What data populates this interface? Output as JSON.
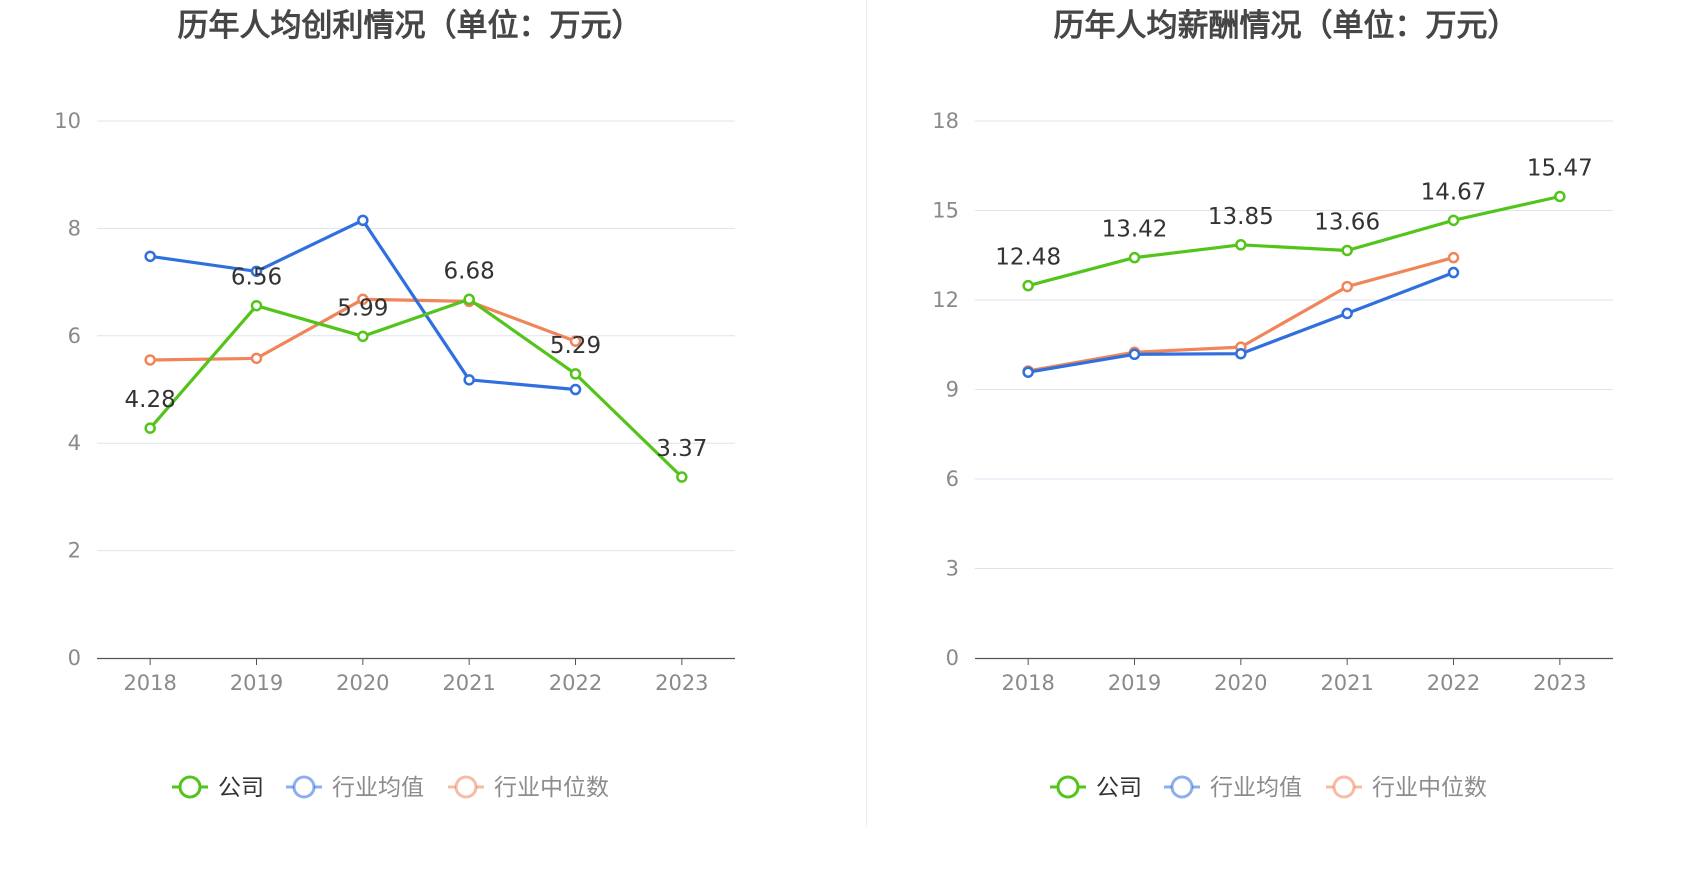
{
  "chart_data": [
    {
      "type": "line",
      "title": "历年人均创利情况（单位：万元）",
      "categories": [
        "2018",
        "2019",
        "2020",
        "2021",
        "2022",
        "2023"
      ],
      "ylim": [
        0,
        10
      ],
      "yticks": [
        0,
        2,
        4,
        6,
        8,
        10
      ],
      "grid": true,
      "legend_position": "bottom",
      "series": [
        {
          "name": "公司",
          "color": "#52c41a",
          "values": [
            4.28,
            6.56,
            5.99,
            6.68,
            5.29,
            3.37
          ],
          "labels": [
            "4.28",
            "6.56",
            "5.99",
            "6.68",
            "5.29",
            "3.37"
          ]
        },
        {
          "name": "行业均值",
          "color": "#2f6fde",
          "values": [
            7.48,
            7.2,
            8.15,
            5.18,
            5.0,
            null
          ]
        },
        {
          "name": "行业中位数",
          "color": "#f0855a",
          "values": [
            5.55,
            5.58,
            6.68,
            6.64,
            5.9,
            null
          ]
        }
      ]
    },
    {
      "type": "line",
      "title": "历年人均薪酬情况（单位：万元）",
      "categories": [
        "2018",
        "2019",
        "2020",
        "2021",
        "2022",
        "2023"
      ],
      "ylim": [
        0,
        18
      ],
      "yticks": [
        0,
        3,
        6,
        9,
        12,
        15,
        18
      ],
      "grid": true,
      "legend_position": "bottom",
      "series": [
        {
          "name": "公司",
          "color": "#52c41a",
          "values": [
            12.48,
            13.42,
            13.85,
            13.66,
            14.67,
            15.47
          ],
          "labels": [
            "12.48",
            "13.42",
            "13.85",
            "13.66",
            "14.67",
            "15.47"
          ]
        },
        {
          "name": "行业均值",
          "color": "#2f6fde",
          "values": [
            9.58,
            10.18,
            10.2,
            11.55,
            12.92,
            null
          ]
        },
        {
          "name": "行业中位数",
          "color": "#f0855a",
          "values": [
            9.62,
            10.25,
            10.42,
            12.45,
            13.42,
            null
          ]
        }
      ]
    }
  ]
}
